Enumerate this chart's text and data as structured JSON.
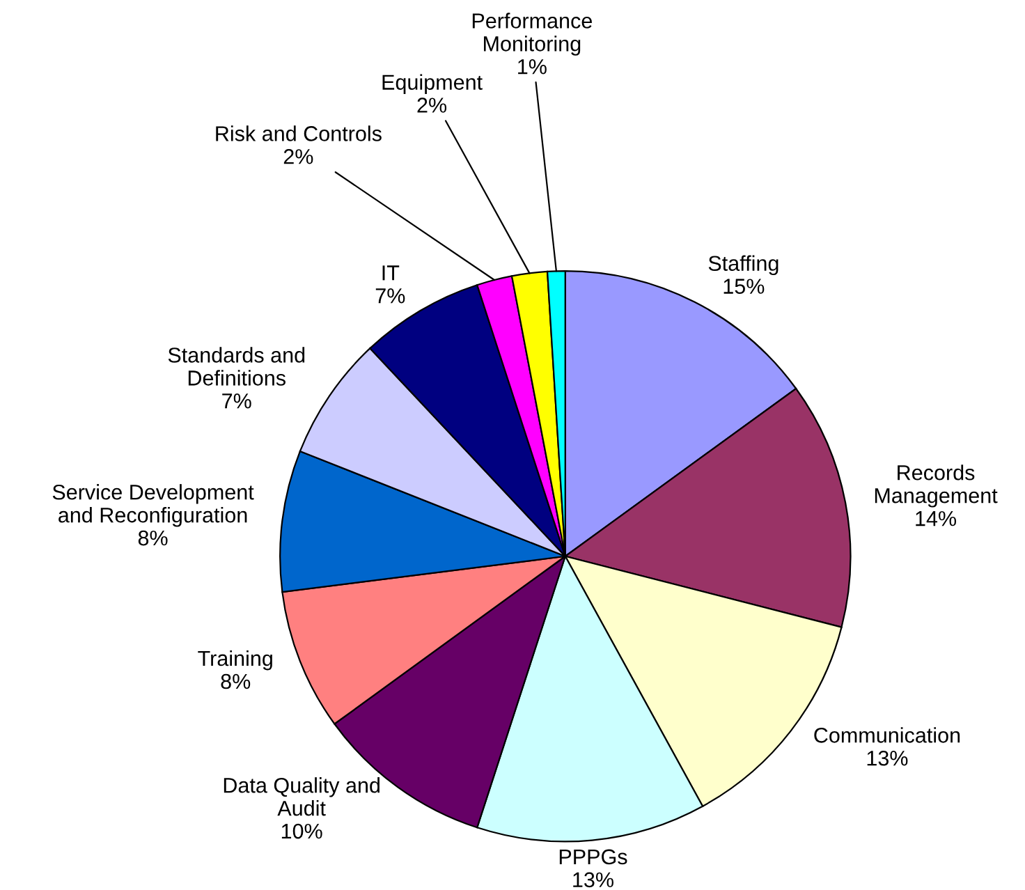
{
  "chart_data": {
    "type": "pie",
    "categories": [
      "Staffing",
      "Records\nManagement",
      "Communication",
      "PPPGs",
      "Data Quality and\nAudit",
      "Training",
      "Service Development\nand Reconfiguration",
      "Standards and\nDefinitions",
      "IT",
      "Risk and Controls",
      "Equipment",
      "Performance\nMonitoring"
    ],
    "values": [
      15,
      14,
      13,
      13,
      10,
      8,
      8,
      7,
      7,
      2,
      2,
      1
    ],
    "value_labels": [
      "15%",
      "14%",
      "13%",
      "13%",
      "10%",
      "8%",
      "8%",
      "7%",
      "7%",
      "2%",
      "2%",
      "1%"
    ],
    "colors": [
      "#9999ff",
      "#993366",
      "#ffffcc",
      "#ccffff",
      "#660066",
      "#ff8080",
      "#0066cc",
      "#ccccff",
      "#000080",
      "#ff00ff",
      "#ffff00",
      "#00ffff"
    ]
  }
}
